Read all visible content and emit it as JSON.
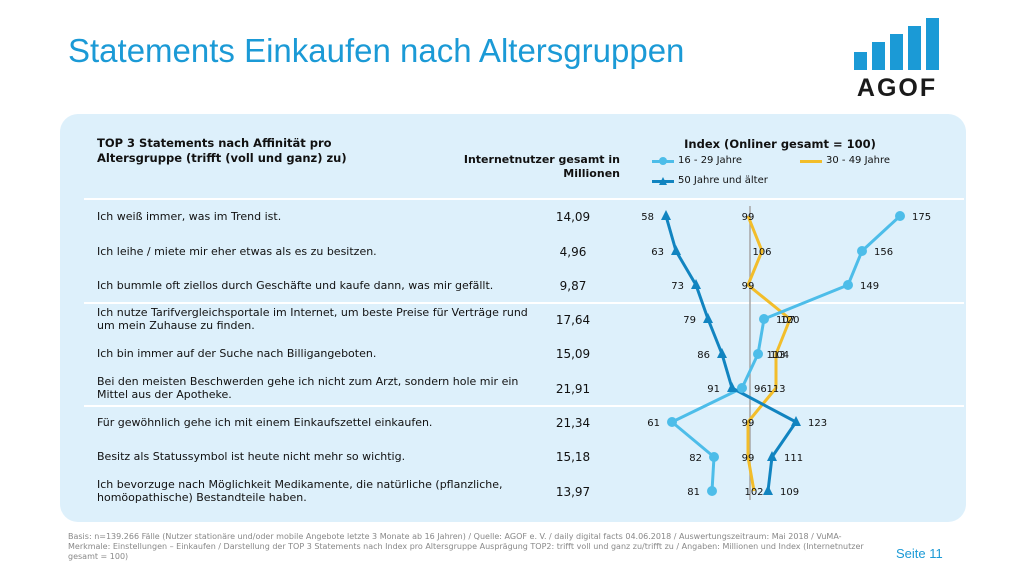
{
  "title": "Statements Einkaufen nach Altersgruppen",
  "logo": {
    "text": "AGOF"
  },
  "header": {
    "statement_title": "TOP 3 Statements nach Affinität pro Altersgruppe (trifft (voll und ganz) zu)",
    "value_column": "Internetnutzer gesamt in Millionen",
    "index_title": "Index (Onliner gesamt = 100)"
  },
  "colors": {
    "brand": "#1b9ad6",
    "panel": "#ddf0fb",
    "series_16_29": "#4dbde9",
    "series_30_49": "#f2bd2a",
    "series_50_plus": "#1184c0",
    "baseline": "#a6a6a6"
  },
  "chart_data": {
    "type": "line",
    "title": "Index (Onliner gesamt = 100)",
    "categories": [
      "Ich weiß immer, was im Trend ist.",
      "Ich leihe / miete mir eher etwas als es zu besitzen.",
      "Ich bummle oft ziellos durch Geschäfte und kaufe dann, was mir gefällt.",
      "Ich nutze Tarifvergleichsportale im Internet, um beste Preise für Verträge rund um mein Zuhause zu finden.",
      "Ich bin immer auf der Suche nach Billigangeboten.",
      "Bei den meisten Beschwerden gehe ich nicht zum Arzt, sondern hole mir ein Mittel aus der Apotheke.",
      "Für gewöhnlich gehe ich mit einem Einkaufszettel einkaufen.",
      "Besitz als Statussymbol ist heute nicht mehr so wichtig.",
      "Ich bevorzuge nach Möglichkeit Medikamente, die natürliche (pflanzliche, homöopathische) Bestandteile haben."
    ],
    "internet_users_millions": [
      "14,09",
      "4,96",
      "9,87",
      "17,64",
      "15,09",
      "21,91",
      "21,34",
      "15,18",
      "13,97"
    ],
    "baseline": 100,
    "series": [
      {
        "name": "16 - 29 Jahre",
        "marker": "circle",
        "values": [
          175,
          156,
          149,
          107,
          104,
          96,
          61,
          82,
          81
        ]
      },
      {
        "name": "30 - 49 Jahre",
        "marker": "none",
        "values": [
          99,
          106,
          99,
          120,
          113,
          113,
          99,
          99,
          102
        ]
      },
      {
        "name": "50 Jahre und älter",
        "marker": "triangle",
        "values": [
          58,
          63,
          73,
          79,
          86,
          91,
          123,
          111,
          109
        ]
      }
    ],
    "legend_position": "top"
  },
  "footnote": "Basis: n=139.266 Fälle (Nutzer stationäre und/oder mobile Angebote letzte 3 Monate ab 16 Jahren) / Quelle: AGOF e. V. / daily digital facts 04.06.2018  / Auswertungszeitraum: Mai 2018 / VuMA-Merkmale: Einstellungen – Einkaufen / Darstellung der TOP 3 Statements nach Index pro Altersgruppe Ausprägung TOP2: trifft voll und ganz zu/trifft zu / Angaben: Millionen und Index (Internetnutzer gesamt = 100)",
  "page_number": "Seite 11"
}
